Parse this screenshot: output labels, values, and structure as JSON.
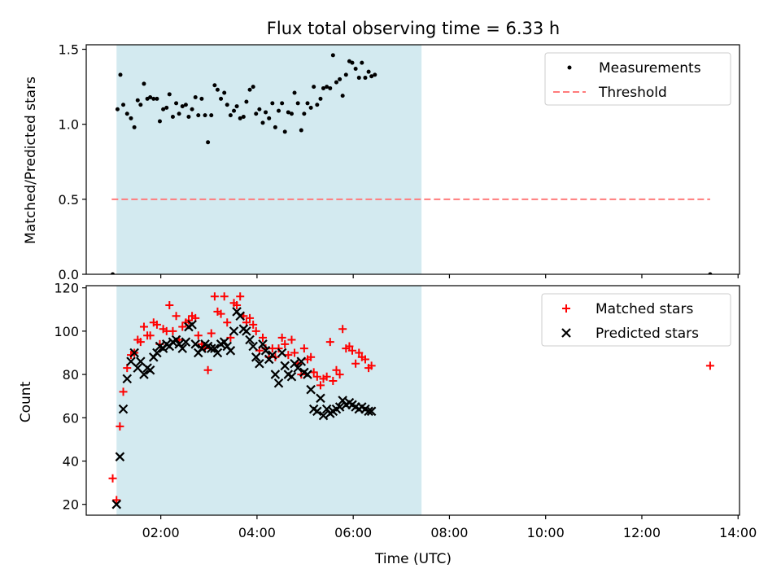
{
  "chart_data": [
    {
      "type": "scatter",
      "title": "Flux total observing time = 6.33 h",
      "xlabel": "",
      "ylabel": "Matched/Predicted stars",
      "xlim": [
        0.45,
        14.03
      ],
      "ylim": [
        0,
        1.53
      ],
      "yticks": [
        0.0,
        0.5,
        1.0,
        1.5
      ],
      "ytick_labels": [
        "0.0",
        "0.5",
        "1.0",
        "1.5"
      ],
      "legend_position": "top-right",
      "shaded_span": [
        1.08,
        7.42
      ],
      "shade_color": "#d3eaf0",
      "series": [
        {
          "name": "Measurements",
          "kind": "scatter",
          "marker": "dot",
          "color": "#000000",
          "points": [
            [
              1.0,
              0.0
            ],
            [
              1.1,
              1.1
            ],
            [
              1.16,
              1.33
            ],
            [
              1.22,
              1.13
            ],
            [
              1.3,
              1.07
            ],
            [
              1.38,
              1.04
            ],
            [
              1.45,
              0.98
            ],
            [
              1.52,
              1.16
            ],
            [
              1.58,
              1.13
            ],
            [
              1.65,
              1.27
            ],
            [
              1.72,
              1.17
            ],
            [
              1.78,
              1.18
            ],
            [
              1.85,
              1.17
            ],
            [
              1.92,
              1.17
            ],
            [
              1.98,
              1.02
            ],
            [
              2.05,
              1.1
            ],
            [
              2.12,
              1.11
            ],
            [
              2.18,
              1.2
            ],
            [
              2.25,
              1.05
            ],
            [
              2.32,
              1.14
            ],
            [
              2.38,
              1.07
            ],
            [
              2.45,
              1.12
            ],
            [
              2.52,
              1.13
            ],
            [
              2.58,
              1.05
            ],
            [
              2.65,
              1.1
            ],
            [
              2.72,
              1.18
            ],
            [
              2.78,
              1.06
            ],
            [
              2.85,
              1.17
            ],
            [
              2.92,
              1.06
            ],
            [
              2.98,
              0.88
            ],
            [
              3.05,
              1.06
            ],
            [
              3.12,
              1.26
            ],
            [
              3.18,
              1.23
            ],
            [
              3.25,
              1.17
            ],
            [
              3.32,
              1.21
            ],
            [
              3.38,
              1.13
            ],
            [
              3.45,
              1.06
            ],
            [
              3.52,
              1.09
            ],
            [
              3.58,
              1.12
            ],
            [
              3.65,
              1.04
            ],
            [
              3.72,
              1.05
            ],
            [
              3.78,
              1.15
            ],
            [
              3.85,
              1.23
            ],
            [
              3.92,
              1.25
            ],
            [
              3.98,
              1.07
            ],
            [
              4.05,
              1.1
            ],
            [
              4.12,
              1.01
            ],
            [
              4.18,
              1.08
            ],
            [
              4.25,
              1.04
            ],
            [
              4.32,
              1.14
            ],
            [
              4.38,
              0.98
            ],
            [
              4.45,
              1.09
            ],
            [
              4.52,
              1.14
            ],
            [
              4.58,
              0.95
            ],
            [
              4.65,
              1.08
            ],
            [
              4.72,
              1.07
            ],
            [
              4.78,
              1.21
            ],
            [
              4.85,
              1.14
            ],
            [
              4.92,
              0.96
            ],
            [
              4.98,
              1.07
            ],
            [
              5.05,
              1.14
            ],
            [
              5.12,
              1.11
            ],
            [
              5.18,
              1.25
            ],
            [
              5.25,
              1.13
            ],
            [
              5.32,
              1.17
            ],
            [
              5.38,
              1.24
            ],
            [
              5.45,
              1.25
            ],
            [
              5.52,
              1.24
            ],
            [
              5.58,
              1.46
            ],
            [
              5.65,
              1.28
            ],
            [
              5.72,
              1.3
            ],
            [
              5.78,
              1.19
            ],
            [
              5.85,
              1.33
            ],
            [
              5.92,
              1.42
            ],
            [
              5.98,
              1.41
            ],
            [
              6.05,
              1.37
            ],
            [
              6.12,
              1.31
            ],
            [
              6.18,
              1.41
            ],
            [
              6.25,
              1.31
            ],
            [
              6.32,
              1.35
            ],
            [
              6.38,
              1.32
            ],
            [
              6.45,
              1.33
            ],
            [
              13.42,
              0.0
            ]
          ]
        },
        {
          "name": "Threshold",
          "kind": "line",
          "style": "dashed",
          "color": "#ff7b7b",
          "points": [
            [
              0.98,
              0.5
            ],
            [
              13.42,
              0.5
            ]
          ]
        }
      ]
    },
    {
      "type": "scatter",
      "title": "",
      "xlabel": "Time (UTC)",
      "ylabel": "Count",
      "xlim": [
        0.45,
        14.03
      ],
      "ylim": [
        15,
        121
      ],
      "xticks": [
        2,
        4,
        6,
        8,
        10,
        12,
        14
      ],
      "xtick_labels": [
        "02:00",
        "04:00",
        "06:00",
        "08:00",
        "10:00",
        "12:00",
        "14:00"
      ],
      "yticks": [
        20,
        40,
        60,
        80,
        100,
        120
      ],
      "ytick_labels": [
        "20",
        "40",
        "60",
        "80",
        "100",
        "120"
      ],
      "legend_position": "top-right",
      "shaded_span": [
        1.08,
        7.42
      ],
      "shade_color": "#d3eaf0",
      "series": [
        {
          "name": "Matched stars",
          "kind": "scatter",
          "marker": "plus",
          "color": "#ff0000",
          "points": [
            [
              1.0,
              32
            ],
            [
              1.08,
              22
            ],
            [
              1.15,
              56
            ],
            [
              1.22,
              72
            ],
            [
              1.3,
              83
            ],
            [
              1.38,
              89
            ],
            [
              1.45,
              90
            ],
            [
              1.52,
              96
            ],
            [
              1.58,
              95
            ],
            [
              1.65,
              102
            ],
            [
              1.72,
              98
            ],
            [
              1.78,
              98
            ],
            [
              1.85,
              104
            ],
            [
              1.92,
              103
            ],
            [
              1.98,
              94
            ],
            [
              2.05,
              101
            ],
            [
              2.12,
              100
            ],
            [
              2.18,
              112
            ],
            [
              2.25,
              100
            ],
            [
              2.32,
              107
            ],
            [
              2.38,
              96
            ],
            [
              2.45,
              102
            ],
            [
              2.52,
              104
            ],
            [
              2.58,
              105
            ],
            [
              2.65,
              107
            ],
            [
              2.72,
              106
            ],
            [
              2.78,
              98
            ],
            [
              2.85,
              94
            ],
            [
              2.92,
              92
            ],
            [
              2.98,
              82
            ],
            [
              3.05,
              99
            ],
            [
              3.12,
              116
            ],
            [
              3.18,
              109
            ],
            [
              3.25,
              108
            ],
            [
              3.32,
              116
            ],
            [
              3.38,
              104
            ],
            [
              3.45,
              97
            ],
            [
              3.52,
              113
            ],
            [
              3.58,
              112
            ],
            [
              3.65,
              116
            ],
            [
              3.72,
              107
            ],
            [
              3.78,
              104
            ],
            [
              3.85,
              106
            ],
            [
              3.92,
              103
            ],
            [
              3.98,
              100
            ],
            [
              4.05,
              91
            ],
            [
              4.12,
              97
            ],
            [
              4.18,
              92
            ],
            [
              4.25,
              88
            ],
            [
              4.32,
              92
            ],
            [
              4.38,
              88
            ],
            [
              4.45,
              92
            ],
            [
              4.52,
              97
            ],
            [
              4.58,
              94
            ],
            [
              4.65,
              89
            ],
            [
              4.72,
              96
            ],
            [
              4.78,
              90
            ],
            [
              4.85,
              85
            ],
            [
              4.92,
              80
            ],
            [
              4.98,
              92
            ],
            [
              5.05,
              87
            ],
            [
              5.12,
              88
            ],
            [
              5.18,
              81
            ],
            [
              5.25,
              79
            ],
            [
              5.32,
              75
            ],
            [
              5.38,
              78
            ],
            [
              5.45,
              79
            ],
            [
              5.52,
              95
            ],
            [
              5.58,
              77
            ],
            [
              5.65,
              82
            ],
            [
              5.72,
              80
            ],
            [
              5.78,
              101
            ],
            [
              5.85,
              92
            ],
            [
              5.92,
              93
            ],
            [
              5.98,
              91
            ],
            [
              6.05,
              85
            ],
            [
              6.12,
              90
            ],
            [
              6.18,
              88
            ],
            [
              6.25,
              87
            ],
            [
              6.32,
              83
            ],
            [
              6.38,
              84
            ],
            [
              13.42,
              84
            ]
          ]
        },
        {
          "name": "Predicted stars",
          "kind": "scatter",
          "marker": "x",
          "color": "#000000",
          "points": [
            [
              1.08,
              20
            ],
            [
              1.15,
              42
            ],
            [
              1.22,
              64
            ],
            [
              1.3,
              78
            ],
            [
              1.38,
              86
            ],
            [
              1.45,
              90
            ],
            [
              1.52,
              83
            ],
            [
              1.58,
              86
            ],
            [
              1.65,
              80
            ],
            [
              1.72,
              83
            ],
            [
              1.78,
              82
            ],
            [
              1.85,
              88
            ],
            [
              1.92,
              90
            ],
            [
              1.98,
              93
            ],
            [
              2.05,
              92
            ],
            [
              2.12,
              94
            ],
            [
              2.18,
              93
            ],
            [
              2.25,
              95
            ],
            [
              2.32,
              96
            ],
            [
              2.38,
              94
            ],
            [
              2.45,
              92
            ],
            [
              2.52,
              95
            ],
            [
              2.58,
              102
            ],
            [
              2.65,
              103
            ],
            [
              2.72,
              94
            ],
            [
              2.78,
              90
            ],
            [
              2.85,
              92
            ],
            [
              2.92,
              94
            ],
            [
              2.98,
              93
            ],
            [
              3.05,
              92
            ],
            [
              3.12,
              92
            ],
            [
              3.18,
              90
            ],
            [
              3.25,
              94
            ],
            [
              3.32,
              95
            ],
            [
              3.38,
              93
            ],
            [
              3.45,
              91
            ],
            [
              3.52,
              100
            ],
            [
              3.58,
              109
            ],
            [
              3.65,
              107
            ],
            [
              3.72,
              101
            ],
            [
              3.78,
              100
            ],
            [
              3.85,
              96
            ],
            [
              3.92,
              93
            ],
            [
              3.98,
              88
            ],
            [
              4.05,
              85
            ],
            [
              4.12,
              94
            ],
            [
              4.18,
              91
            ],
            [
              4.25,
              87
            ],
            [
              4.32,
              89
            ],
            [
              4.38,
              80
            ],
            [
              4.45,
              76
            ],
            [
              4.52,
              90
            ],
            [
              4.58,
              84
            ],
            [
              4.65,
              80
            ],
            [
              4.72,
              79
            ],
            [
              4.78,
              85
            ],
            [
              4.85,
              83
            ],
            [
              4.92,
              86
            ],
            [
              4.98,
              81
            ],
            [
              5.05,
              80
            ],
            [
              5.12,
              73
            ],
            [
              5.18,
              64
            ],
            [
              5.25,
              63
            ],
            [
              5.32,
              69
            ],
            [
              5.38,
              61
            ],
            [
              5.45,
              64
            ],
            [
              5.52,
              62
            ],
            [
              5.58,
              63
            ],
            [
              5.65,
              64
            ],
            [
              5.72,
              65
            ],
            [
              5.78,
              68
            ],
            [
              5.85,
              66
            ],
            [
              5.92,
              67
            ],
            [
              5.98,
              66
            ],
            [
              6.05,
              65
            ],
            [
              6.12,
              64
            ],
            [
              6.18,
              65
            ],
            [
              6.25,
              64
            ],
            [
              6.32,
              63
            ],
            [
              6.38,
              63
            ]
          ]
        }
      ]
    }
  ]
}
